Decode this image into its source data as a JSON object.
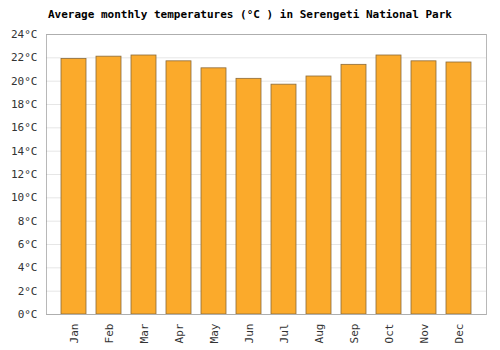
{
  "chart_data": {
    "type": "bar",
    "title": "Average monthly temperatures (°C ) in Serengeti National Park",
    "categories": [
      "Jan",
      "Feb",
      "Mar",
      "Apr",
      "May",
      "Jun",
      "Jul",
      "Aug",
      "Sep",
      "Oct",
      "Nov",
      "Dec"
    ],
    "values": [
      21.9,
      22.1,
      22.2,
      21.7,
      21.1,
      20.2,
      19.7,
      20.4,
      21.4,
      22.2,
      21.7,
      21.6
    ],
    "color": "#fbaa2b",
    "ylim": [
      0,
      24
    ],
    "yticks": [
      {
        "value": 0,
        "label": "0°C"
      },
      {
        "value": 2,
        "label": "2°C"
      },
      {
        "value": 4,
        "label": "4°C"
      },
      {
        "value": 6,
        "label": "6°C"
      },
      {
        "value": 8,
        "label": "8°C"
      },
      {
        "value": 10,
        "label": "10°C"
      },
      {
        "value": 12,
        "label": "12°C"
      },
      {
        "value": 14,
        "label": "14°C"
      },
      {
        "value": 16,
        "label": "16°C"
      },
      {
        "value": 18,
        "label": "18°C"
      },
      {
        "value": 20,
        "label": "20°C"
      },
      {
        "value": 22,
        "label": "22°C"
      },
      {
        "value": 24,
        "label": "24°C"
      }
    ],
    "grid": true
  }
}
